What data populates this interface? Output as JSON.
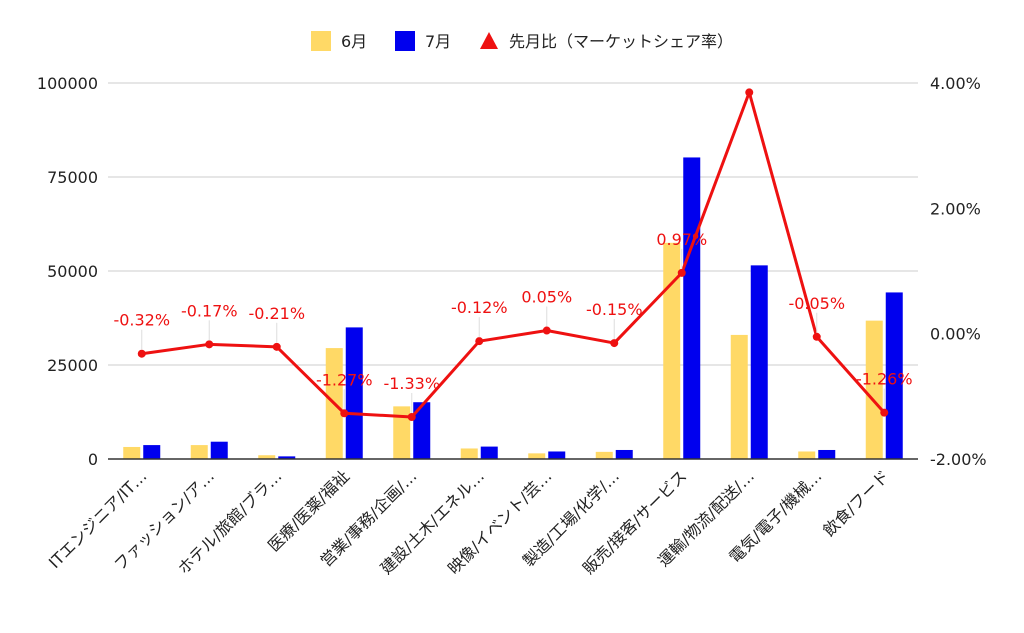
{
  "chart_data": {
    "type": "bar",
    "title": "",
    "categories": [
      "ITエンジニア/IT…",
      "ファッション/ア…",
      "ホテル/旅館/ブラ…",
      "医療/医薬/福祉",
      "営業/事務/企画/…",
      "建設/土木/エネル…",
      "映像/イベント/芸…",
      "製造/工場/化学/…",
      "販売/接客/サービス",
      "運輸/物流/配送/…",
      "電気/電子/機械…",
      "飲食/フード"
    ],
    "series": [
      {
        "name": "6月",
        "type": "bar",
        "axis": "left",
        "color": "#FFD966",
        "values": [
          3200,
          3700,
          1000,
          29500,
          14000,
          2800,
          1500,
          1900,
          57500,
          33000,
          2000,
          36800
        ]
      },
      {
        "name": "7月",
        "type": "bar",
        "axis": "left",
        "color": "#0000EE",
        "values": [
          3700,
          4600,
          700,
          35000,
          15100,
          3300,
          2000,
          2400,
          80200,
          51500,
          2400,
          44300
        ]
      },
      {
        "name": "先月比（マーケットシェア率）",
        "type": "line",
        "axis": "right",
        "color": "#EE1111",
        "values": [
          -0.32,
          -0.17,
          -0.21,
          -1.27,
          -1.33,
          -0.12,
          0.05,
          -0.15,
          0.97,
          3.85,
          -0.05,
          -1.26
        ],
        "labels": [
          "-0.32%",
          "-0.17%",
          "-0.21%",
          "-1.27%",
          "-1.33%",
          "-0.12%",
          "0.05%",
          "-0.15%",
          "0.97%",
          "",
          "-0.05%",
          "-1.26%"
        ]
      }
    ],
    "left_axis": {
      "min": 0,
      "max": 100000,
      "ticks": [
        0,
        25000,
        50000,
        75000,
        100000
      ],
      "tick_labels": [
        "0",
        "25000",
        "50000",
        "75000",
        "100000"
      ]
    },
    "right_axis": {
      "min": -2,
      "max": 4,
      "ticks": [
        -2,
        0,
        2,
        4
      ],
      "tick_labels": [
        "-2.00%",
        "0.00%",
        "2.00%",
        "4.00%"
      ]
    },
    "grid": true,
    "legend": "top-center"
  }
}
